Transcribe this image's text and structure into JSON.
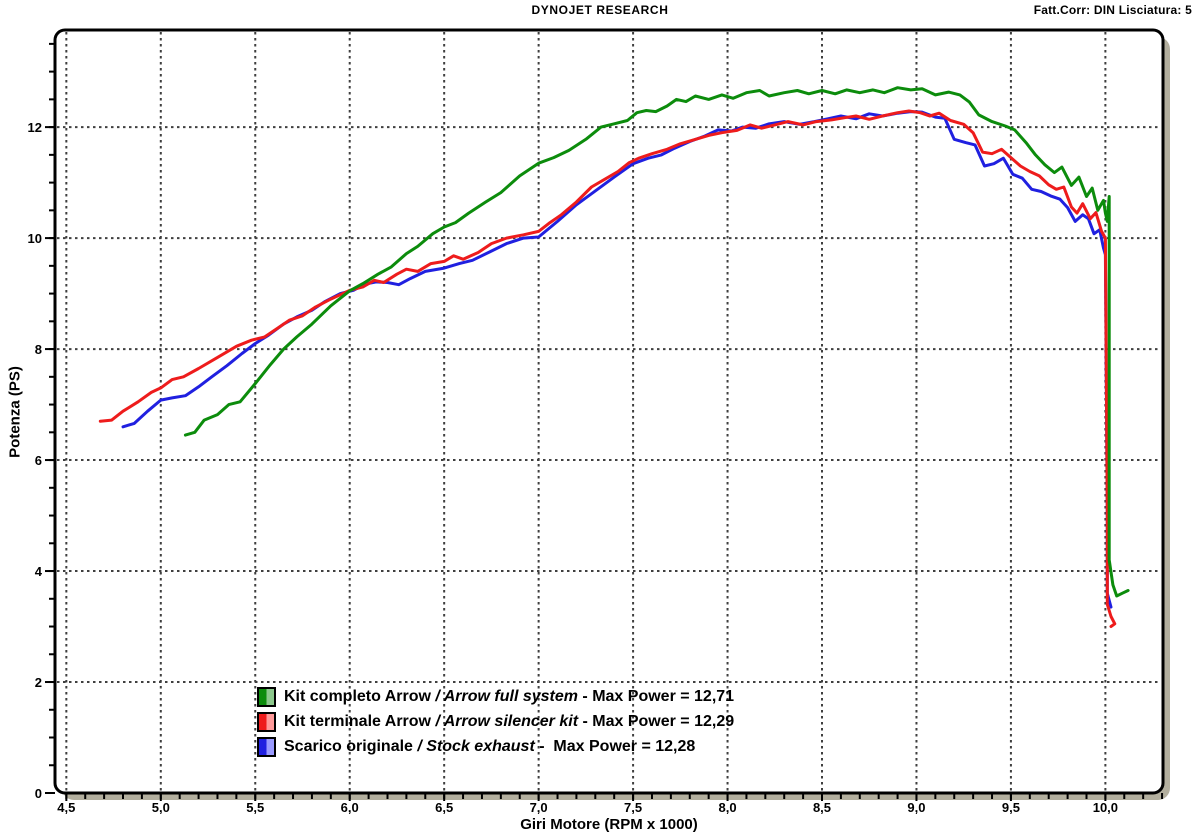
{
  "header": {
    "title": "DYNOJET RESEARCH",
    "correction": "Fatt.Corr: DIN  Lisciatura: 5"
  },
  "legend": {
    "items": [
      {
        "name_it": "Kit completo Arrow",
        "sep": " / ",
        "name_en": "Arrow full system",
        "rest": " - Max Power = 12,71",
        "max_power": "12,71",
        "swatch_dark": "#0c8c0c",
        "swatch_light": "#8cc88c"
      },
      {
        "name_it": "Kit terminale Arrow",
        "sep": " / ",
        "name_en": "Arrow silencer kit",
        "rest": " - Max Power = 12,29",
        "max_power": "12,29",
        "swatch_dark": "#ee1c1c",
        "swatch_light": "#ff9a9a"
      },
      {
        "name_it": "Scarico originale",
        "sep": " / ",
        "name_en": "Stock exhaust",
        "rest": " -  Max Power = 12,28",
        "max_power": "12,28",
        "swatch_dark": "#2020e0",
        "swatch_light": "#9a9aff"
      }
    ]
  },
  "chart_data": {
    "type": "line",
    "xlabel": "Giri Motore (RPM x 1000)",
    "ylabel": "Potenza (PS)",
    "xlim": [
      4.44,
      10.305
    ],
    "ylim": [
      0,
      13.75
    ],
    "grid": true,
    "grid_color": "#3f3f3f",
    "frame_color": "#000000",
    "shadow_color": "#b3af9e",
    "background": "#ffffff",
    "legend_position": "inside-bottom-left",
    "x_ticks": {
      "values": [
        4.5,
        5.0,
        5.5,
        6.0,
        6.5,
        7.0,
        7.5,
        8.0,
        8.5,
        9.0,
        9.5,
        10.0
      ],
      "labels": [
        "4,5",
        "5,0",
        "5,5",
        "6,0",
        "6,5",
        "7,0",
        "7,5",
        "8,0",
        "8,5",
        "9,0",
        "9,5",
        "10,0"
      ],
      "minor_step": 0.1
    },
    "y_ticks": {
      "values": [
        0,
        2,
        4,
        6,
        8,
        10,
        12
      ],
      "labels": [
        "0",
        "2",
        "4",
        "6",
        "8",
        "10",
        "12"
      ],
      "minor_step": 0.5,
      "grid_values": [
        2,
        4,
        6,
        8,
        10,
        12
      ]
    },
    "series": [
      {
        "name": "Kit completo Arrow / Arrow full system",
        "max_power": 12.71,
        "color": "#0c8c0c",
        "points": [
          [
            5.13,
            6.45
          ],
          [
            5.18,
            6.5
          ],
          [
            5.23,
            6.72
          ],
          [
            5.3,
            6.82
          ],
          [
            5.36,
            7.0
          ],
          [
            5.42,
            7.05
          ],
          [
            5.5,
            7.38
          ],
          [
            5.58,
            7.72
          ],
          [
            5.65,
            8.0
          ],
          [
            5.72,
            8.22
          ],
          [
            5.8,
            8.45
          ],
          [
            5.9,
            8.78
          ],
          [
            6.0,
            9.05
          ],
          [
            6.07,
            9.18
          ],
          [
            6.15,
            9.35
          ],
          [
            6.22,
            9.48
          ],
          [
            6.3,
            9.72
          ],
          [
            6.36,
            9.85
          ],
          [
            6.44,
            10.08
          ],
          [
            6.5,
            10.2
          ],
          [
            6.56,
            10.28
          ],
          [
            6.63,
            10.45
          ],
          [
            6.72,
            10.65
          ],
          [
            6.8,
            10.82
          ],
          [
            6.9,
            11.12
          ],
          [
            7.0,
            11.35
          ],
          [
            7.08,
            11.45
          ],
          [
            7.16,
            11.58
          ],
          [
            7.25,
            11.78
          ],
          [
            7.33,
            12.0
          ],
          [
            7.4,
            12.06
          ],
          [
            7.47,
            12.12
          ],
          [
            7.52,
            12.26
          ],
          [
            7.57,
            12.3
          ],
          [
            7.62,
            12.28
          ],
          [
            7.68,
            12.38
          ],
          [
            7.73,
            12.5
          ],
          [
            7.78,
            12.46
          ],
          [
            7.83,
            12.56
          ],
          [
            7.9,
            12.5
          ],
          [
            7.97,
            12.58
          ],
          [
            8.03,
            12.52
          ],
          [
            8.1,
            12.62
          ],
          [
            8.17,
            12.66
          ],
          [
            8.22,
            12.56
          ],
          [
            8.3,
            12.62
          ],
          [
            8.37,
            12.66
          ],
          [
            8.43,
            12.6
          ],
          [
            8.5,
            12.66
          ],
          [
            8.57,
            12.6
          ],
          [
            8.63,
            12.67
          ],
          [
            8.7,
            12.62
          ],
          [
            8.77,
            12.67
          ],
          [
            8.83,
            12.62
          ],
          [
            8.9,
            12.71
          ],
          [
            8.97,
            12.67
          ],
          [
            9.03,
            12.69
          ],
          [
            9.1,
            12.58
          ],
          [
            9.17,
            12.63
          ],
          [
            9.23,
            12.58
          ],
          [
            9.28,
            12.45
          ],
          [
            9.33,
            12.22
          ],
          [
            9.4,
            12.1
          ],
          [
            9.47,
            12.02
          ],
          [
            9.52,
            11.95
          ],
          [
            9.58,
            11.72
          ],
          [
            9.63,
            11.5
          ],
          [
            9.68,
            11.32
          ],
          [
            9.73,
            11.18
          ],
          [
            9.77,
            11.28
          ],
          [
            9.82,
            10.95
          ],
          [
            9.86,
            11.1
          ],
          [
            9.9,
            10.75
          ],
          [
            9.93,
            10.9
          ],
          [
            9.96,
            10.5
          ],
          [
            9.99,
            10.68
          ],
          [
            10.0,
            10.45
          ],
          [
            10.01,
            10.3
          ],
          [
            10.02,
            10.75
          ],
          [
            10.02,
            4.2
          ],
          [
            10.04,
            3.75
          ],
          [
            10.06,
            3.55
          ],
          [
            10.09,
            3.6
          ],
          [
            10.12,
            3.65
          ]
        ]
      },
      {
        "name": "Kit terminale Arrow / Arrow silencer kit",
        "max_power": 12.29,
        "color": "#ee1c1c",
        "points": [
          [
            4.68,
            6.7
          ],
          [
            4.74,
            6.72
          ],
          [
            4.8,
            6.88
          ],
          [
            4.88,
            7.05
          ],
          [
            4.95,
            7.22
          ],
          [
            5.0,
            7.3
          ],
          [
            5.06,
            7.45
          ],
          [
            5.12,
            7.5
          ],
          [
            5.2,
            7.65
          ],
          [
            5.3,
            7.85
          ],
          [
            5.4,
            8.05
          ],
          [
            5.48,
            8.16
          ],
          [
            5.55,
            8.22
          ],
          [
            5.62,
            8.38
          ],
          [
            5.68,
            8.52
          ],
          [
            5.75,
            8.6
          ],
          [
            5.82,
            8.76
          ],
          [
            5.9,
            8.9
          ],
          [
            6.0,
            9.06
          ],
          [
            6.07,
            9.12
          ],
          [
            6.13,
            9.24
          ],
          [
            6.18,
            9.2
          ],
          [
            6.25,
            9.35
          ],
          [
            6.3,
            9.44
          ],
          [
            6.36,
            9.4
          ],
          [
            6.43,
            9.54
          ],
          [
            6.5,
            9.58
          ],
          [
            6.55,
            9.68
          ],
          [
            6.6,
            9.62
          ],
          [
            6.68,
            9.74
          ],
          [
            6.75,
            9.9
          ],
          [
            6.83,
            10.0
          ],
          [
            6.92,
            10.06
          ],
          [
            7.0,
            10.12
          ],
          [
            7.06,
            10.28
          ],
          [
            7.12,
            10.42
          ],
          [
            7.2,
            10.65
          ],
          [
            7.28,
            10.92
          ],
          [
            7.35,
            11.06
          ],
          [
            7.42,
            11.2
          ],
          [
            7.48,
            11.36
          ],
          [
            7.53,
            11.44
          ],
          [
            7.6,
            11.52
          ],
          [
            7.68,
            11.6
          ],
          [
            7.75,
            11.7
          ],
          [
            7.82,
            11.77
          ],
          [
            7.9,
            11.85
          ],
          [
            7.97,
            11.9
          ],
          [
            8.05,
            11.94
          ],
          [
            8.12,
            12.04
          ],
          [
            8.18,
            11.98
          ],
          [
            8.25,
            12.04
          ],
          [
            8.32,
            12.1
          ],
          [
            8.4,
            12.04
          ],
          [
            8.47,
            12.1
          ],
          [
            8.55,
            12.13
          ],
          [
            8.62,
            12.17
          ],
          [
            8.68,
            12.2
          ],
          [
            8.75,
            12.14
          ],
          [
            8.82,
            12.2
          ],
          [
            8.9,
            12.26
          ],
          [
            8.96,
            12.29
          ],
          [
            9.02,
            12.26
          ],
          [
            9.07,
            12.2
          ],
          [
            9.12,
            12.25
          ],
          [
            9.18,
            12.12
          ],
          [
            9.25,
            12.05
          ],
          [
            9.3,
            11.9
          ],
          [
            9.35,
            11.55
          ],
          [
            9.4,
            11.52
          ],
          [
            9.45,
            11.6
          ],
          [
            9.5,
            11.45
          ],
          [
            9.55,
            11.3
          ],
          [
            9.6,
            11.2
          ],
          [
            9.65,
            11.12
          ],
          [
            9.7,
            10.96
          ],
          [
            9.74,
            10.88
          ],
          [
            9.78,
            10.92
          ],
          [
            9.82,
            10.56
          ],
          [
            9.85,
            10.45
          ],
          [
            9.88,
            10.62
          ],
          [
            9.92,
            10.35
          ],
          [
            9.95,
            10.46
          ],
          [
            9.98,
            10.12
          ],
          [
            10.0,
            10.0
          ],
          [
            10.01,
            5.0
          ],
          [
            10.01,
            3.4
          ],
          [
            10.03,
            3.18
          ],
          [
            10.05,
            3.05
          ],
          [
            10.03,
            3.0
          ]
        ]
      },
      {
        "name": "Scarico originale / Stock exhaust",
        "max_power": 12.28,
        "color": "#2020e0",
        "points": [
          [
            4.8,
            6.6
          ],
          [
            4.86,
            6.66
          ],
          [
            4.93,
            6.88
          ],
          [
            5.0,
            7.08
          ],
          [
            5.06,
            7.12
          ],
          [
            5.13,
            7.16
          ],
          [
            5.2,
            7.32
          ],
          [
            5.27,
            7.5
          ],
          [
            5.35,
            7.7
          ],
          [
            5.43,
            7.92
          ],
          [
            5.5,
            8.1
          ],
          [
            5.57,
            8.25
          ],
          [
            5.65,
            8.45
          ],
          [
            5.72,
            8.58
          ],
          [
            5.8,
            8.7
          ],
          [
            5.87,
            8.86
          ],
          [
            5.95,
            9.0
          ],
          [
            6.02,
            9.06
          ],
          [
            6.08,
            9.17
          ],
          [
            6.14,
            9.21
          ],
          [
            6.2,
            9.2
          ],
          [
            6.26,
            9.16
          ],
          [
            6.32,
            9.27
          ],
          [
            6.4,
            9.4
          ],
          [
            6.5,
            9.46
          ],
          [
            6.58,
            9.54
          ],
          [
            6.65,
            9.6
          ],
          [
            6.74,
            9.75
          ],
          [
            6.83,
            9.9
          ],
          [
            6.92,
            10.0
          ],
          [
            7.0,
            10.02
          ],
          [
            7.1,
            10.3
          ],
          [
            7.2,
            10.6
          ],
          [
            7.3,
            10.85
          ],
          [
            7.4,
            11.1
          ],
          [
            7.5,
            11.34
          ],
          [
            7.58,
            11.44
          ],
          [
            7.65,
            11.5
          ],
          [
            7.72,
            11.62
          ],
          [
            7.8,
            11.74
          ],
          [
            7.88,
            11.84
          ],
          [
            7.95,
            11.95
          ],
          [
            8.02,
            11.93
          ],
          [
            8.08,
            12.0
          ],
          [
            8.15,
            11.98
          ],
          [
            8.22,
            12.06
          ],
          [
            8.3,
            12.1
          ],
          [
            8.38,
            12.05
          ],
          [
            8.46,
            12.1
          ],
          [
            8.53,
            12.15
          ],
          [
            8.6,
            12.2
          ],
          [
            8.68,
            12.15
          ],
          [
            8.75,
            12.24
          ],
          [
            8.82,
            12.2
          ],
          [
            8.9,
            12.25
          ],
          [
            8.97,
            12.28
          ],
          [
            9.03,
            12.27
          ],
          [
            9.1,
            12.18
          ],
          [
            9.15,
            12.16
          ],
          [
            9.2,
            11.78
          ],
          [
            9.26,
            11.72
          ],
          [
            9.31,
            11.68
          ],
          [
            9.36,
            11.3
          ],
          [
            9.41,
            11.34
          ],
          [
            9.46,
            11.44
          ],
          [
            9.51,
            11.15
          ],
          [
            9.56,
            11.08
          ],
          [
            9.61,
            10.88
          ],
          [
            9.66,
            10.84
          ],
          [
            9.71,
            10.76
          ],
          [
            9.76,
            10.7
          ],
          [
            9.8,
            10.55
          ],
          [
            9.84,
            10.3
          ],
          [
            9.88,
            10.42
          ],
          [
            9.91,
            10.35
          ],
          [
            9.94,
            10.08
          ],
          [
            9.97,
            10.15
          ],
          [
            9.99,
            9.82
          ],
          [
            10.0,
            9.7
          ],
          [
            10.01,
            5.0
          ],
          [
            10.01,
            3.6
          ],
          [
            10.03,
            3.35
          ]
        ]
      }
    ]
  }
}
